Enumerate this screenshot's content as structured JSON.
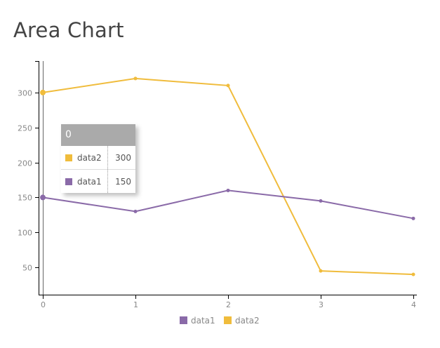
{
  "title": "Area Chart",
  "colors": {
    "data1": "#8a6aa8",
    "data2": "#f0bc3c"
  },
  "tooltip": {
    "title": "0",
    "rows": [
      {
        "name": "data2",
        "value": "300"
      },
      {
        "name": "data1",
        "value": "150"
      }
    ]
  },
  "chart_data": {
    "type": "line",
    "title": "Area Chart",
    "x": [
      0,
      1,
      2,
      3,
      4
    ],
    "series": [
      {
        "name": "data1",
        "values": [
          150,
          130,
          160,
          145,
          120
        ]
      },
      {
        "name": "data2",
        "values": [
          300,
          320,
          310,
          45,
          40
        ]
      }
    ],
    "yticks": [
      50,
      100,
      150,
      200,
      250,
      300
    ],
    "xticks": [
      0,
      1,
      2,
      3,
      4
    ],
    "xlim": [
      0,
      4
    ],
    "ylim": [
      11,
      345
    ],
    "grid": false,
    "legend": "bottom"
  }
}
